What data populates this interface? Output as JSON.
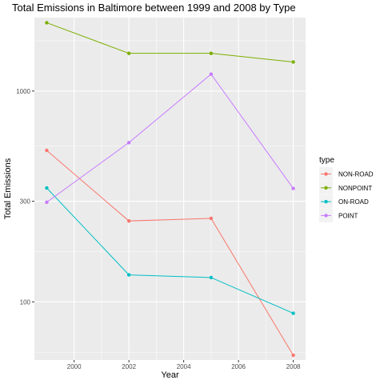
{
  "chart_data": {
    "type": "line",
    "title": "Total Emissions in Baltimore between 1999 and 2008 by Type",
    "xlabel": "Year",
    "ylabel": "Total Emissions",
    "x": [
      1999,
      2002,
      2005,
      2008
    ],
    "x_ticks": [
      2000,
      2002,
      2004,
      2006,
      2008
    ],
    "x_tick_labels": [
      "2000",
      "2002",
      "2004",
      "2006",
      "2008"
    ],
    "xlim": [
      1998.55,
      2008.45
    ],
    "y_scale": "log10",
    "y_ticks": [
      100,
      300,
      1000
    ],
    "y_tick_labels": [
      "100",
      "300",
      "1000"
    ],
    "ylim": [
      53,
      2230
    ],
    "grid": true,
    "legend": {
      "title": "type",
      "position": "right"
    },
    "series": [
      {
        "name": "NON-ROAD",
        "color": "#F8766D",
        "values": [
          522.9,
          242.0,
          248.9,
          55.8
        ]
      },
      {
        "name": "NONPOINT",
        "color": "#7CAE00",
        "values": [
          2107.6,
          1509.5,
          1509.5,
          1373.2
        ]
      },
      {
        "name": "ON-ROAD",
        "color": "#00BFC4",
        "values": [
          346.8,
          134.3,
          130.4,
          88.3
        ]
      },
      {
        "name": "POINT",
        "color": "#C77CFF",
        "values": [
          296.8,
          569.3,
          1202.5,
          344.98
        ]
      }
    ]
  }
}
